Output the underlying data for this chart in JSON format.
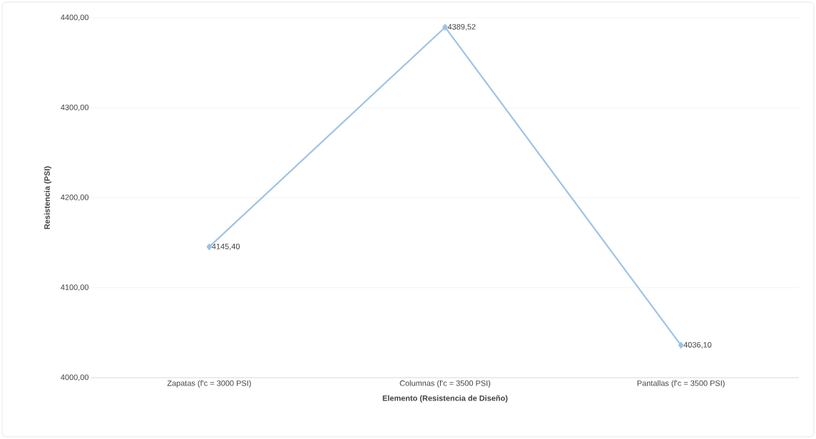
{
  "chart_data": {
    "type": "line",
    "xlabel": "Elemento (Resistencia de Diseño)",
    "ylabel": "Resistencia (PSI)",
    "categories": [
      "Zapatas (f'c = 3000 PSI)",
      "Columnas (f'c = 3500 PSI)",
      "Pantallas (f'c = 3500 PSI)"
    ],
    "values": [
      4145.4,
      4389.52,
      4036.1
    ],
    "value_labels": [
      "4145,40",
      "4389,52",
      "4036,10"
    ],
    "color": "#9dc3e6",
    "ylim": [
      4000,
      4400
    ],
    "yticks": [
      {
        "value": 4000,
        "label": "4000,00"
      },
      {
        "value": 4100,
        "label": "4100,00"
      },
      {
        "value": 4200,
        "label": "4200,00"
      },
      {
        "value": 4300,
        "label": "4300,00"
      },
      {
        "value": 4400,
        "label": "4400,00"
      }
    ],
    "grid": "y",
    "marker": "diamond",
    "line_style": "solid"
  }
}
